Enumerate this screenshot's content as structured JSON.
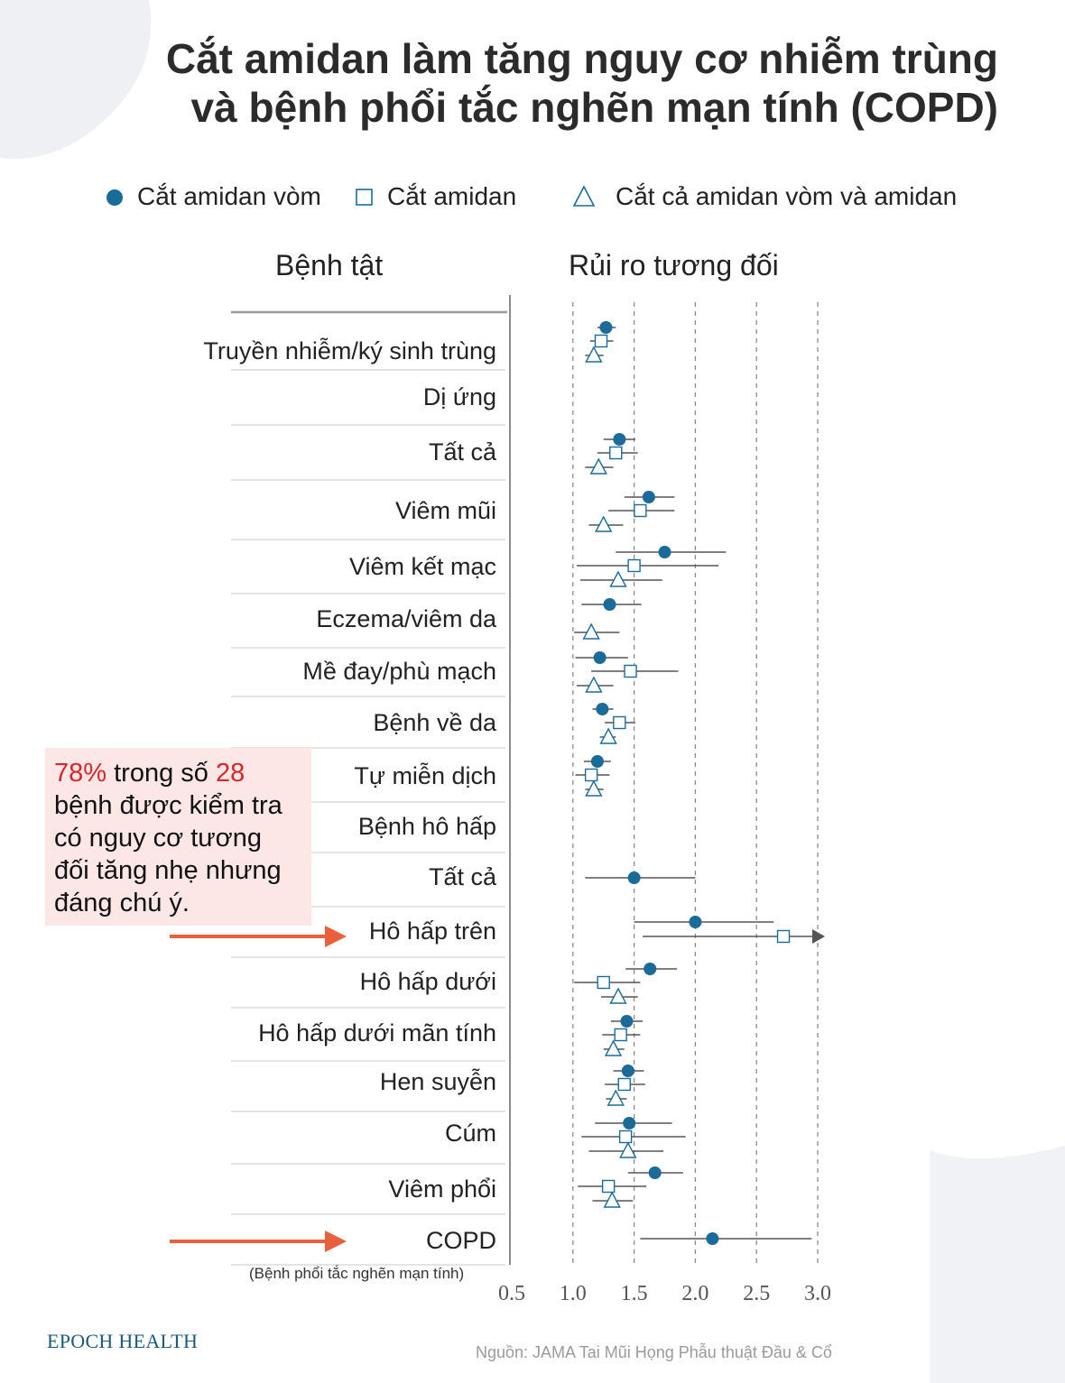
{
  "title": {
    "line1": "Cắt amidan làm tăng nguy cơ nhiễm trùng",
    "line2": "và bệnh phổi tắc nghẽn mạn tính (COPD)"
  },
  "legend": {
    "adenoidectomy": "Cắt amidan vòm",
    "tonsillectomy": "Cắt amidan",
    "both": "Cắt cả amidan vòm và amidan"
  },
  "headers": {
    "disease": "Bệnh tật",
    "risk": "Rủi ro tương đối"
  },
  "rows": [
    "Truyền nhiễm/ký sinh trùng",
    "Dị ứng",
    "Tất cả",
    "Viêm mũi",
    "Viêm kết mạc",
    "Eczema/viêm da",
    "Mề đay/phù mạch",
    "Bệnh về da",
    "Tự miễn dịch",
    "Bệnh hô hấp",
    "Tất cả",
    "Hô hấp trên",
    "Hô hấp dưới",
    "Hô hấp dưới mãn tính",
    "Hen suyễn",
    "Cúm",
    "Viêm phổi",
    "COPD"
  ],
  "copd_note": "(Bệnh phổi tắc nghẽn mạn tính)",
  "callout": {
    "pct": "78%",
    "text1": " trong số ",
    "num": "28",
    "text2": "bệnh được kiểm tra có nguy cơ tương đối tăng nhẹ nhưng đáng chú ý."
  },
  "brand": "EPOCH HEALTH",
  "source": "Nguồn: JAMA Tai Mũi Họng Phẫu thuật Đầu & Cổ",
  "colors": {
    "marker": "#1a6b9a",
    "accent": "#e8613c",
    "highlight": "#d6262c"
  },
  "chart_data": {
    "type": "forest",
    "x_label": "Rủi ro tương đối",
    "xlim": [
      0.5,
      3.0
    ],
    "ticks": [
      "0.5",
      "1.0",
      "1.5",
      "2.0",
      "2.5",
      "3.0"
    ],
    "tick_values": [
      0.5,
      1.0,
      1.5,
      2.0,
      2.5,
      3.0
    ],
    "gridlines": [
      1.0,
      1.5,
      2.0,
      2.5,
      3.0
    ],
    "series": [
      {
        "name": "Cắt amidan vòm",
        "marker": "circle",
        "points": [
          {
            "row": 0,
            "est": 1.27,
            "lo": 1.2,
            "hi": 1.35
          },
          {
            "row": 2,
            "est": 1.38,
            "lo": 1.25,
            "hi": 1.51
          },
          {
            "row": 3,
            "est": 1.62,
            "lo": 1.42,
            "hi": 1.83
          },
          {
            "row": 4,
            "est": 1.75,
            "lo": 1.35,
            "hi": 2.25
          },
          {
            "row": 5,
            "est": 1.3,
            "lo": 1.07,
            "hi": 1.56
          },
          {
            "row": 6,
            "est": 1.22,
            "lo": 1.02,
            "hi": 1.45
          },
          {
            "row": 7,
            "est": 1.24,
            "lo": 1.16,
            "hi": 1.33
          },
          {
            "row": 8,
            "est": 1.2,
            "lo": 1.09,
            "hi": 1.31
          },
          {
            "row": 10,
            "est": 1.5,
            "lo": 1.1,
            "hi": 2.0
          },
          {
            "row": 11,
            "est": 2.0,
            "lo": 1.5,
            "hi": 2.64
          },
          {
            "row": 12,
            "est": 1.63,
            "lo": 1.43,
            "hi": 1.85
          },
          {
            "row": 13,
            "est": 1.44,
            "lo": 1.31,
            "hi": 1.57
          },
          {
            "row": 14,
            "est": 1.45,
            "lo": 1.33,
            "hi": 1.58
          },
          {
            "row": 15,
            "est": 1.46,
            "lo": 1.18,
            "hi": 1.81
          },
          {
            "row": 16,
            "est": 1.67,
            "lo": 1.45,
            "hi": 1.9
          },
          {
            "row": 17,
            "est": 2.14,
            "lo": 1.55,
            "hi": 2.95
          }
        ]
      },
      {
        "name": "Cắt amidan",
        "marker": "square",
        "points": [
          {
            "row": 0,
            "est": 1.23,
            "lo": 1.14,
            "hi": 1.33
          },
          {
            "row": 2,
            "est": 1.35,
            "lo": 1.2,
            "hi": 1.53
          },
          {
            "row": 3,
            "est": 1.55,
            "lo": 1.29,
            "hi": 1.83
          },
          {
            "row": 4,
            "est": 1.5,
            "lo": 1.03,
            "hi": 2.19
          },
          {
            "row": 6,
            "est": 1.47,
            "lo": 1.15,
            "hi": 1.86
          },
          {
            "row": 7,
            "est": 1.38,
            "lo": 1.26,
            "hi": 1.51
          },
          {
            "row": 8,
            "est": 1.15,
            "lo": 1.02,
            "hi": 1.3
          },
          {
            "row": 11,
            "est": 2.72,
            "lo": 1.57,
            "hi": 3.0,
            "arrow": true
          },
          {
            "row": 12,
            "est": 1.25,
            "lo": 1.01,
            "hi": 1.55
          },
          {
            "row": 13,
            "est": 1.39,
            "lo": 1.24,
            "hi": 1.55
          },
          {
            "row": 14,
            "est": 1.42,
            "lo": 1.26,
            "hi": 1.59
          },
          {
            "row": 15,
            "est": 1.43,
            "lo": 1.07,
            "hi": 1.92
          },
          {
            "row": 16,
            "est": 1.29,
            "lo": 1.04,
            "hi": 1.6
          }
        ]
      },
      {
        "name": "Cắt cả amidan vòm và amidan",
        "marker": "triangle",
        "points": [
          {
            "row": 0,
            "est": 1.17,
            "lo": 1.1,
            "hi": 1.25
          },
          {
            "row": 2,
            "est": 1.21,
            "lo": 1.1,
            "hi": 1.33
          },
          {
            "row": 3,
            "est": 1.25,
            "lo": 1.13,
            "hi": 1.41
          },
          {
            "row": 4,
            "est": 1.37,
            "lo": 1.06,
            "hi": 1.73
          },
          {
            "row": 5,
            "est": 1.15,
            "lo": 1.01,
            "hi": 1.38
          },
          {
            "row": 6,
            "est": 1.17,
            "lo": 1.03,
            "hi": 1.33
          },
          {
            "row": 7,
            "est": 1.29,
            "lo": 1.22,
            "hi": 1.35
          },
          {
            "row": 8,
            "est": 1.17,
            "lo": 1.1,
            "hi": 1.25
          },
          {
            "row": 12,
            "est": 1.37,
            "lo": 1.23,
            "hi": 1.53
          },
          {
            "row": 13,
            "est": 1.33,
            "lo": 1.25,
            "hi": 1.42
          },
          {
            "row": 14,
            "est": 1.35,
            "lo": 1.27,
            "hi": 1.44
          },
          {
            "row": 15,
            "est": 1.45,
            "lo": 1.13,
            "hi": 1.74
          },
          {
            "row": 16,
            "est": 1.32,
            "lo": 1.16,
            "hi": 1.49
          }
        ]
      }
    ]
  }
}
